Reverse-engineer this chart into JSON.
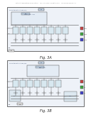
{
  "bg_color": "#f8f8f8",
  "page_bg": "#ffffff",
  "header_text": "Patent Application Publication    Jul. 23, 2009  Sheet 3 of 3    US 0000000000 A1",
  "fig3a_label": "Fig. 3A",
  "fig3b_label": "Fig. 3B",
  "lc": "#555555",
  "lc_dark": "#333333",
  "box_fill": "#eef2f8",
  "inner_fill": "#e4ecf5",
  "cell_fill": "#d8e8f0"
}
